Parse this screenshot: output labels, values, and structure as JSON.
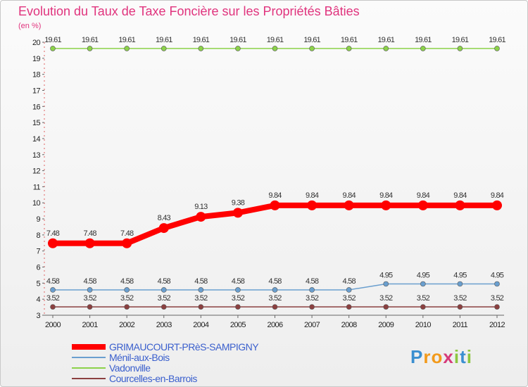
{
  "chart_data": {
    "type": "line",
    "title": "Evolution du Taux de Taxe Foncière sur les Propriétés Bâties",
    "subtitle": "(en %)",
    "x": [
      "2000",
      "2001",
      "2002",
      "2003",
      "2004",
      "2005",
      "2006",
      "2007",
      "2008",
      "2009",
      "2010",
      "2011",
      "2012"
    ],
    "ylim": [
      3,
      20
    ],
    "yticks": [
      3,
      4,
      5,
      6,
      7,
      8,
      9,
      10,
      11,
      12,
      13,
      14,
      15,
      16,
      17,
      18,
      19,
      20
    ],
    "y_tick_labels": [
      "3",
      "4",
      "5",
      "6",
      "7",
      "8",
      "9",
      "10",
      "11",
      "12",
      "13",
      "14",
      "15",
      "16",
      "17",
      "18",
      "19",
      "20"
    ],
    "grid": false,
    "legend": "bottom-left",
    "series": [
      {
        "name": "Vadonville",
        "color": "#8cd24a",
        "line_style": "thin",
        "values": [
          19.61,
          19.61,
          19.61,
          19.61,
          19.61,
          19.61,
          19.61,
          19.61,
          19.61,
          19.61,
          19.61,
          19.61,
          19.61
        ],
        "labels": [
          "19.61",
          "19.61",
          "19.61",
          "19.61",
          "19.61",
          "19.61",
          "19.61",
          "19.61",
          "19.61",
          "19.61",
          "19.61",
          "19.61",
          "19.61"
        ]
      },
      {
        "name": "GRIMAUCOURT-PRèS-SAMPIGNY",
        "color": "#ff0000",
        "line_style": "thick",
        "values": [
          7.48,
          7.48,
          7.48,
          8.43,
          9.13,
          9.38,
          9.84,
          9.84,
          9.84,
          9.84,
          9.84,
          9.84,
          9.84
        ],
        "labels": [
          "7.48",
          "7.48",
          "7.48",
          "8.43",
          "9.13",
          "9.38",
          "9.84",
          "9.84",
          "9.84",
          "9.84",
          "9.84",
          "9.84",
          "9.84"
        ]
      },
      {
        "name": "Ménil-aux-Bois",
        "color": "#6a9fcf",
        "line_style": "thin",
        "values": [
          4.58,
          4.58,
          4.58,
          4.58,
          4.58,
          4.58,
          4.58,
          4.58,
          4.58,
          4.95,
          4.95,
          4.95,
          4.95
        ],
        "labels": [
          "4.58",
          "4.58",
          "4.58",
          "4.58",
          "4.58",
          "4.58",
          "4.58",
          "4.58",
          "4.58",
          "4.95",
          "4.95",
          "4.95",
          "4.95"
        ]
      },
      {
        "name": "Courcelles-en-Barrois",
        "color": "#8b4040",
        "line_style": "thin",
        "values": [
          3.52,
          3.52,
          3.52,
          3.52,
          3.52,
          3.52,
          3.52,
          3.52,
          3.52,
          3.52,
          3.52,
          3.52,
          3.52
        ],
        "labels": [
          "3.52",
          "3.52",
          "3.52",
          "3.52",
          "3.52",
          "3.52",
          "3.52",
          "3.52",
          "3.52",
          "3.52",
          "3.52",
          "3.52",
          "3.52"
        ]
      }
    ],
    "legend_order": [
      "GRIMAUCOURT-PRèS-SAMPIGNY",
      "Ménil-aux-Bois",
      "Vadonville",
      "Courcelles-en-Barrois"
    ]
  },
  "brand": {
    "letters": [
      "P",
      "r",
      "o",
      "x",
      "i",
      "t",
      "i"
    ],
    "colors": [
      "#3a8fd0",
      "#f29a1b",
      "#f29a1b",
      "#d63a7a",
      "#8cc63f",
      "#3a8fd0",
      "#8cc63f"
    ]
  }
}
